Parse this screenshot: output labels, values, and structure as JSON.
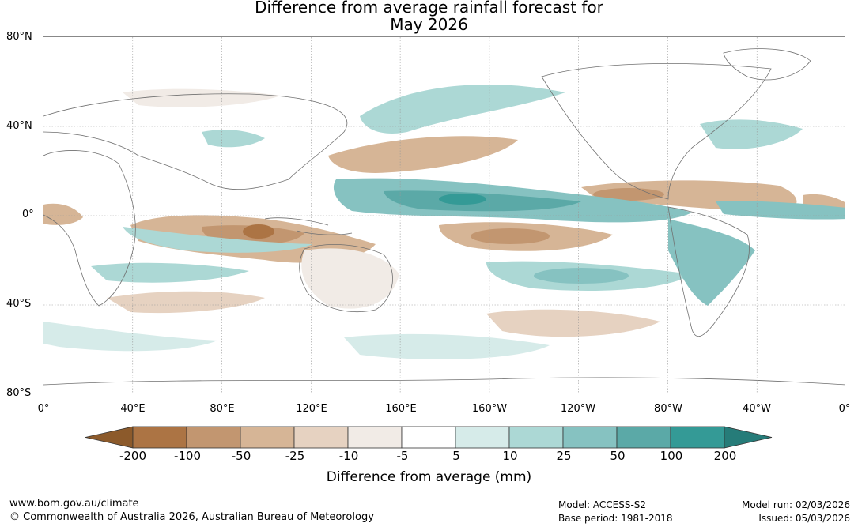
{
  "title": {
    "line1": "Difference from average rainfall forecast for",
    "line2": "May 2026"
  },
  "map": {
    "lat_labels": [
      "80°N",
      "40°N",
      "0°",
      "40°S",
      "80°S"
    ],
    "lon_labels": [
      "0°",
      "40°E",
      "80°E",
      "120°E",
      "160°E",
      "160°W",
      "120°W",
      "80°W",
      "40°W",
      "0°"
    ]
  },
  "colorbar": {
    "tick_labels": [
      "-200",
      "-100",
      "-50",
      "-25",
      "-10",
      "-5",
      "5",
      "10",
      "25",
      "50",
      "100",
      "200"
    ],
    "colors": [
      "#8c5a2b",
      "#ac7444",
      "#c29670",
      "#d6b596",
      "#e6d2c1",
      "#f1ebe6",
      "#ffffff",
      "#d6ebe9",
      "#acd8d5",
      "#86c2c1",
      "#5ba9a7",
      "#349a96",
      "#267c79"
    ],
    "title": "Difference from average (mm)"
  },
  "footer": {
    "website": "www.bom.gov.au/climate",
    "copyright": "© Commonwealth of Australia 2026, Australian Bureau of Meteorology",
    "model": "Model: ACCESS-S2",
    "base_period": "Base period: 1981-2018",
    "model_run": "Model run: 02/03/2026",
    "issued": "Issued: 05/03/2026"
  }
}
